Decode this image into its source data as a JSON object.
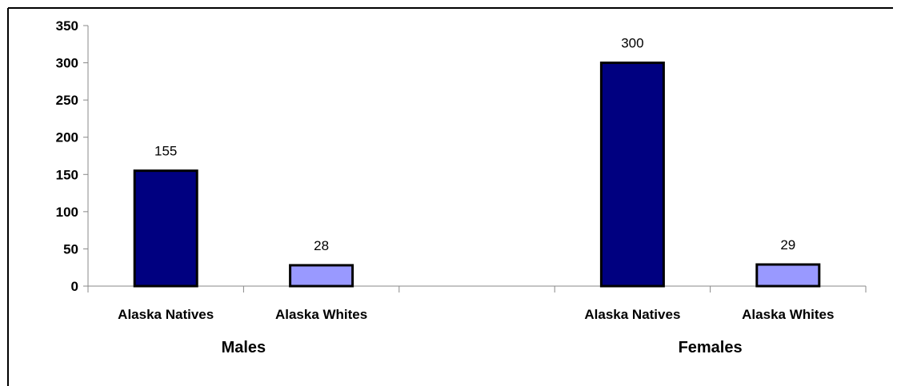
{
  "chart_data": {
    "type": "bar",
    "title": "",
    "xlabel": "",
    "ylabel": "",
    "ylim": [
      0,
      350
    ],
    "yticks": [
      0,
      50,
      100,
      150,
      200,
      250,
      300,
      350
    ],
    "groups": [
      {
        "label": "Males",
        "bars": [
          {
            "category": "Alaska Natives",
            "value": 155,
            "label": "155",
            "color": "#000080"
          },
          {
            "category": "Alaska Whites",
            "value": 28,
            "label": "28",
            "color": "#9999FF"
          }
        ]
      },
      {
        "label": "Females",
        "bars": [
          {
            "category": "Alaska Natives",
            "value": 300,
            "label": "300",
            "color": "#000080"
          },
          {
            "category": "Alaska Whites",
            "value": 29,
            "label": "29",
            "color": "#9999FF"
          }
        ]
      }
    ],
    "grid": false,
    "legend": "none"
  }
}
